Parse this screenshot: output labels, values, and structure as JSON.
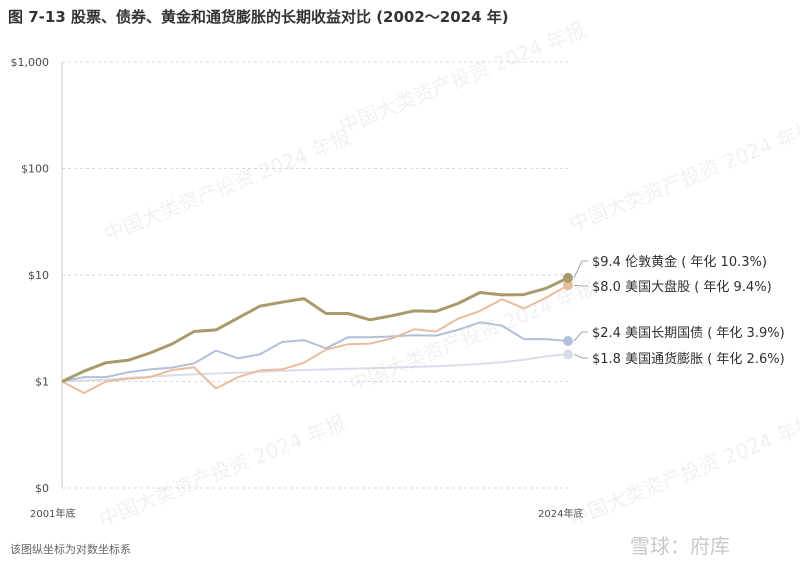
{
  "title": "图 7-13   股票、债券、黄金和通货膨胀的长期收益对比 (2002～2024 年)",
  "footnote": "该图纵坐标为对数坐标系",
  "watermark": "中国大类资产投资 2024 年报",
  "logo": "雪球：府库",
  "chart_data": {
    "type": "line",
    "yscale": "log",
    "ylim": [
      0.1,
      1000
    ],
    "yticks": [
      {
        "value": 0.1,
        "label": "$0"
      },
      {
        "value": 1,
        "label": "$1"
      },
      {
        "value": 10,
        "label": "$10"
      },
      {
        "value": 100,
        "label": "$100"
      },
      {
        "value": 1000,
        "label": "$1,000"
      }
    ],
    "x": [
      2001,
      2002,
      2003,
      2004,
      2005,
      2006,
      2007,
      2008,
      2009,
      2010,
      2011,
      2012,
      2013,
      2014,
      2015,
      2016,
      2017,
      2018,
      2019,
      2020,
      2021,
      2022,
      2023,
      2024
    ],
    "x_tick_labels": [
      "2001年底",
      "2024年底"
    ],
    "grid": "horizontal-dashed",
    "series": [
      {
        "name": "伦敦黄金",
        "label": "$9.4 伦敦黄金 ( 年化 10.3%)",
        "color": "#a89a6a",
        "values": [
          1.0,
          1.25,
          1.5,
          1.58,
          1.85,
          2.25,
          2.95,
          3.05,
          3.95,
          5.1,
          5.55,
          6.0,
          4.35,
          4.35,
          3.8,
          4.15,
          4.6,
          4.55,
          5.4,
          6.85,
          6.5,
          6.55,
          7.5,
          9.4
        ]
      },
      {
        "name": "美国大盘股",
        "label": "$8.0 美国大盘股 ( 年化 9.4%)",
        "color": "#ebbc9b",
        "values": [
          1.0,
          0.78,
          1.0,
          1.06,
          1.1,
          1.28,
          1.36,
          0.86,
          1.1,
          1.27,
          1.3,
          1.5,
          1.99,
          2.24,
          2.27,
          2.54,
          3.09,
          2.95,
          3.88,
          4.6,
          5.92,
          4.85,
          6.12,
          8.0
        ]
      },
      {
        "name": "美国长期国债",
        "label": "$2.4 美国长期国债 ( 年化 3.9%)",
        "color": "#b3bfd8",
        "values": [
          1.0,
          1.1,
          1.1,
          1.22,
          1.3,
          1.35,
          1.48,
          1.95,
          1.65,
          1.8,
          2.35,
          2.45,
          2.05,
          2.6,
          2.6,
          2.65,
          2.72,
          2.7,
          3.05,
          3.6,
          3.35,
          2.5,
          2.5,
          2.4
        ]
      },
      {
        "name": "美国通货膨胀",
        "label": "$1.8 美国通货膨胀 ( 年化 2.6%)",
        "color": "#d8dde8",
        "values": [
          1.0,
          1.02,
          1.04,
          1.08,
          1.11,
          1.14,
          1.17,
          1.19,
          1.21,
          1.23,
          1.26,
          1.28,
          1.3,
          1.32,
          1.33,
          1.35,
          1.37,
          1.39,
          1.42,
          1.46,
          1.52,
          1.6,
          1.72,
          1.8
        ]
      }
    ]
  }
}
